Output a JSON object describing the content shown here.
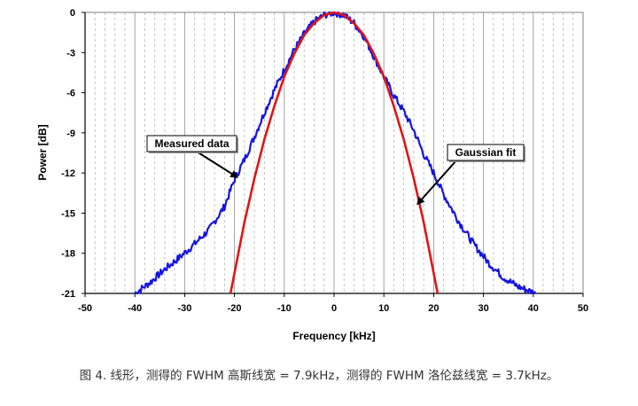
{
  "chart_data": {
    "type": "line",
    "title": "",
    "xlabel": "Frequency [kHz]",
    "ylabel": "Power [dB]",
    "xlim": [
      -50,
      50
    ],
    "ylim": [
      -21,
      0
    ],
    "x_ticks": [
      "-50",
      "-40",
      "-30",
      "-20",
      "-10",
      "0",
      "10",
      "20",
      "30",
      "40",
      "50"
    ],
    "y_ticks": [
      "0",
      "-3",
      "-6",
      "-9",
      "-12",
      "-15",
      "-18",
      "-21"
    ],
    "grid": "dashed vertical minor lines every 2 kHz, solid vertical lines every 10 kHz",
    "series": [
      {
        "name": "Measured data",
        "color": "#1515e0",
        "x": [
          -40,
          -37,
          -34,
          -31,
          -28,
          -25,
          -22,
          -20,
          -18,
          -16,
          -14,
          -12,
          -10,
          -8,
          -6,
          -4,
          -2,
          0,
          2,
          4,
          6,
          8,
          10,
          12,
          14,
          16,
          18,
          20,
          22,
          25,
          28,
          31,
          34,
          37,
          40.5
        ],
        "y": [
          -21.0,
          -20.2,
          -19.2,
          -18.3,
          -17.3,
          -16.2,
          -14.5,
          -12.5,
          -11.0,
          -9.3,
          -7.5,
          -5.8,
          -4.3,
          -2.8,
          -1.6,
          -0.7,
          -0.2,
          0.0,
          -0.2,
          -0.8,
          -1.8,
          -3.3,
          -4.8,
          -6.2,
          -7.4,
          -8.8,
          -10.6,
          -12.0,
          -13.6,
          -15.6,
          -17.3,
          -18.7,
          -19.8,
          -20.5,
          -21.0
        ]
      },
      {
        "name": "Gaussian fit",
        "color": "#e01515",
        "fwhm_khz": 7.9,
        "x": [
          -20.8,
          -18,
          -16,
          -14,
          -12,
          -10,
          -8,
          -6,
          -4,
          -2,
          0,
          2,
          4,
          6,
          8,
          10,
          12,
          14,
          16,
          18,
          20.8
        ],
        "y": [
          -21.0,
          -15.7,
          -12.4,
          -9.5,
          -7.0,
          -4.8,
          -3.1,
          -1.7,
          -0.8,
          -0.2,
          0.0,
          -0.2,
          -0.8,
          -1.7,
          -3.1,
          -4.8,
          -7.0,
          -9.5,
          -12.4,
          -15.7,
          -21.0
        ]
      }
    ],
    "annotations": [
      {
        "label": "Measured data",
        "points_to": {
          "x": -19.5,
          "y": -12.3
        }
      },
      {
        "label": "Gaussian fit",
        "points_to": {
          "x": 16.8,
          "y": -14.3
        }
      }
    ]
  },
  "caption": "图 4. 线形，测得的 FWHM 高斯线宽 = 7.9kHz，测得的 FWHM 洛伦兹线宽 = 3.7kHz。"
}
